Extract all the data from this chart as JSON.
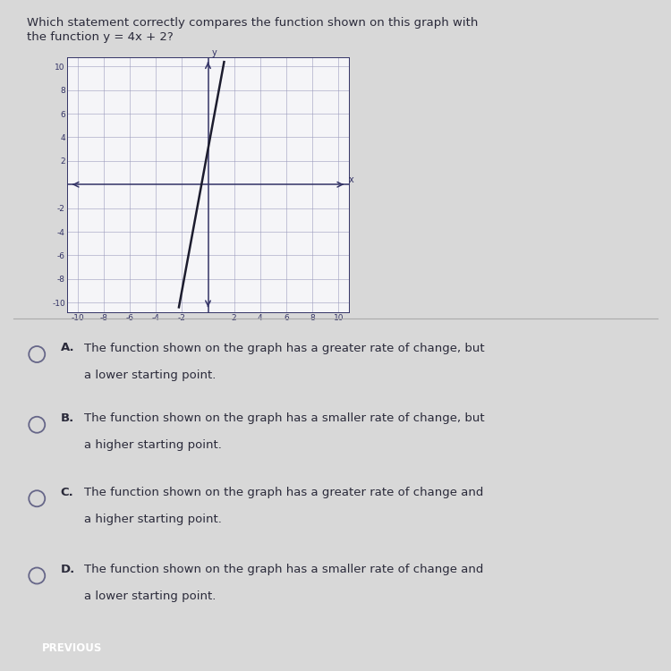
{
  "title_line1": "Which statement correctly compares the function shown on this graph with",
  "title_line2": "the function y = 4x + 2?",
  "graph_xlim": [
    -10,
    10
  ],
  "graph_ylim": [
    -10,
    10
  ],
  "graph_xticks": [
    -10,
    -8,
    -6,
    -4,
    -2,
    2,
    4,
    6,
    8,
    10
  ],
  "graph_yticks": [
    -10,
    -8,
    -6,
    -4,
    -2,
    2,
    4,
    6,
    8,
    10
  ],
  "line_slope": 6,
  "line_intercept": 3,
  "line_color": "#1c1c2e",
  "bg_color": "#d8d8d8",
  "graph_bg": "#f5f5f8",
  "grid_color": "#9999bb",
  "axis_color": "#333366",
  "choices": [
    {
      "label": "A.",
      "line1": "The function shown on the graph has a greater rate of change, but",
      "line2": "a lower starting point."
    },
    {
      "label": "B.",
      "line1": "The function shown on the graph has a smaller rate of change, but",
      "line2": "a higher starting point."
    },
    {
      "label": "C.",
      "line1": "The function shown on the graph has a greater rate of change and",
      "line2": "a higher starting point."
    },
    {
      "label": "D.",
      "line1": "The function shown on the graph has a smaller rate of change and",
      "line2": "a lower starting point."
    }
  ],
  "text_color": "#2a2a3a",
  "circle_color": "#666688",
  "divider_color": "#aaaaaa",
  "button_color": "#3a88c8",
  "button_text": "PREVIOUS",
  "cursor_color": "#444466"
}
